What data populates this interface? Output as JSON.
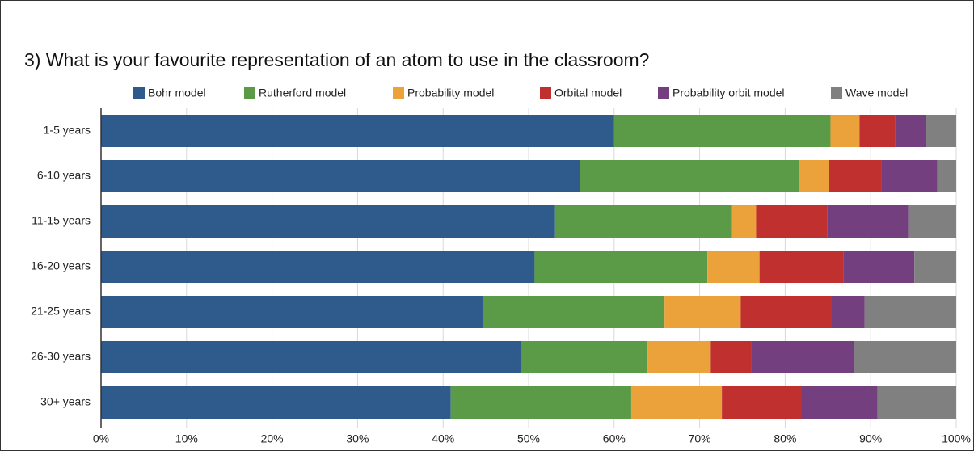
{
  "chart_data": {
    "type": "stacked_barh",
    "title": "3) What is your favourite representation of an atom to use in the classroom?",
    "categories": [
      "1-5 years",
      "6-10 years",
      "11-15 years",
      "16-20 years",
      "21-25 years",
      "26-30 years",
      "30+ years"
    ],
    "series": [
      {
        "name": "Bohr model",
        "color": "#2e5a8c",
        "values": [
          60.0,
          56.0,
          53.1,
          50.7,
          44.7,
          49.1,
          40.9
        ]
      },
      {
        "name": "Rutherford model",
        "color": "#5b9a47",
        "values": [
          25.3,
          25.6,
          20.6,
          20.2,
          21.2,
          14.8,
          21.1
        ]
      },
      {
        "name": "Probability model",
        "color": "#eba23a",
        "values": [
          3.4,
          3.5,
          2.9,
          6.1,
          8.9,
          7.4,
          10.6
        ]
      },
      {
        "name": "Orbital model",
        "color": "#c0302f",
        "values": [
          4.2,
          6.2,
          8.3,
          9.8,
          10.6,
          4.7,
          9.3
        ]
      },
      {
        "name": "Probability orbit model",
        "color": "#733f7e",
        "values": [
          3.6,
          6.5,
          9.5,
          8.3,
          3.9,
          12.0,
          8.9
        ]
      },
      {
        "name": "Wave model",
        "color": "#808080",
        "values": [
          3.5,
          2.2,
          5.6,
          4.9,
          10.7,
          12.0,
          9.2
        ]
      }
    ],
    "xlim": [
      0,
      100
    ],
    "xticks": [
      {
        "value": 0,
        "label": "0%"
      },
      {
        "value": 10,
        "label": "10%"
      },
      {
        "value": 20,
        "label": "20%"
      },
      {
        "value": 30,
        "label": "30%"
      },
      {
        "value": 40,
        "label": "40%"
      },
      {
        "value": 50,
        "label": "50%"
      },
      {
        "value": 60,
        "label": "60%"
      },
      {
        "value": 70,
        "label": "70%"
      },
      {
        "value": 80,
        "label": "80%"
      },
      {
        "value": 90,
        "label": "90%"
      },
      {
        "value": 100,
        "label": "100%"
      }
    ],
    "grid": true,
    "legend": "top"
  }
}
